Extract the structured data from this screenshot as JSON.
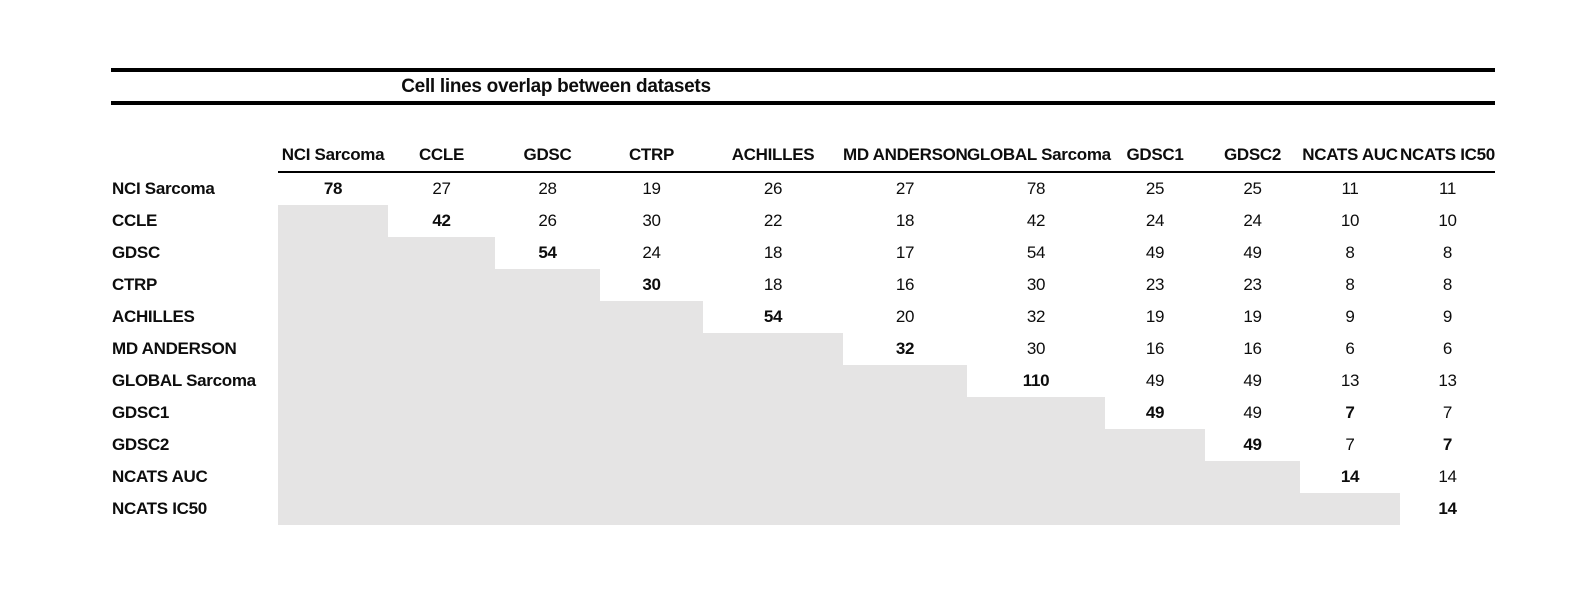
{
  "title": "Cell lines overlap between datasets",
  "table": {
    "corner_label": "",
    "datasets": [
      "NCI Sarcoma",
      "CCLE",
      "GDSC",
      "CTRP",
      "ACHILLES",
      "MD ANDERSON",
      "GLOBAL Sarcoma",
      "GDSC1",
      "GDSC2",
      "NCATS AUC",
      "NCATS IC50"
    ],
    "matrix": [
      [
        78,
        27,
        28,
        19,
        26,
        27,
        78,
        25,
        25,
        11,
        11
      ],
      [
        null,
        42,
        26,
        30,
        22,
        18,
        42,
        24,
        24,
        10,
        10
      ],
      [
        null,
        null,
        54,
        24,
        18,
        17,
        54,
        49,
        49,
        8,
        8
      ],
      [
        null,
        null,
        null,
        30,
        18,
        16,
        30,
        23,
        23,
        8,
        8
      ],
      [
        null,
        null,
        null,
        null,
        54,
        20,
        32,
        19,
        19,
        9,
        9
      ],
      [
        null,
        null,
        null,
        null,
        null,
        32,
        30,
        16,
        16,
        6,
        6
      ],
      [
        null,
        null,
        null,
        null,
        null,
        null,
        110,
        49,
        49,
        13,
        13
      ],
      [
        null,
        null,
        null,
        null,
        null,
        null,
        null,
        49,
        49,
        7,
        7
      ],
      [
        null,
        null,
        null,
        null,
        null,
        null,
        null,
        null,
        49,
        7,
        7
      ],
      [
        null,
        null,
        null,
        null,
        null,
        null,
        null,
        null,
        null,
        14,
        14
      ],
      [
        null,
        null,
        null,
        null,
        null,
        null,
        null,
        null,
        null,
        null,
        14
      ]
    ],
    "bold_diagonal": true,
    "extra_bold_cells": [
      [
        7,
        9
      ],
      [
        8,
        10
      ]
    ],
    "shaded_color": "#e5e4e4"
  }
}
